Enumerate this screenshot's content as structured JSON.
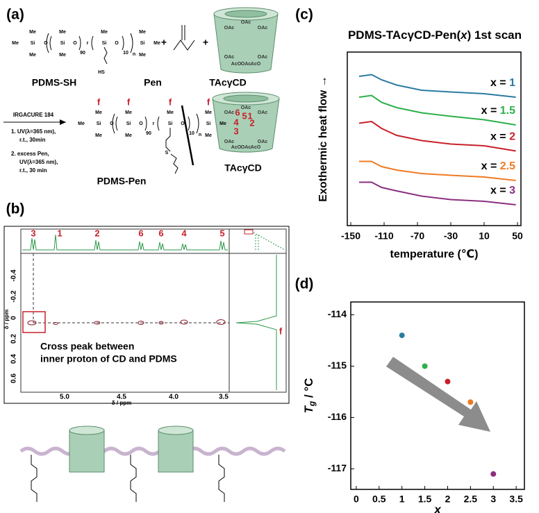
{
  "panel_a": {
    "label": "(a)",
    "me": "Me",
    "si": "Si",
    "o": "O",
    "r": "r",
    "n90": "90",
    "n10": "10",
    "n": "n",
    "hs": "HS",
    "s": "S",
    "plus": "+",
    "oac": "OAc",
    "aco": "AcO",
    "pdms_sh": "PDMS-SH",
    "pen": "Pen",
    "tacgcd": "TAcγCD",
    "reagent": "IRGACURE 184",
    "step1": [
      "1. UV(λ=365 nm),",
      "r.t., 30min"
    ],
    "step2": [
      "2. excess Pen,",
      "UV(λ=365 nm),",
      "r.t., 30 min"
    ],
    "pdms_pen": "PDMS-Pen",
    "f": "f",
    "cd_numbers": [
      "6",
      "5",
      "4",
      "3",
      "2",
      "1"
    ]
  },
  "panel_b": {
    "label": "(b)",
    "peak_labels": [
      "3",
      "1",
      "2",
      "6",
      "6",
      "4",
      "5"
    ],
    "f": "f",
    "yticks": [
      "-0.4",
      "-0.2",
      "0",
      "0.2",
      "0.4",
      "0.6"
    ],
    "xticks": [
      "5.0",
      "4.5",
      "4.0",
      "3.5"
    ],
    "axis_label": "δ / ppm",
    "annotation": [
      "Cross peak between",
      "inner proton of CD and PDMS"
    ]
  },
  "panel_c_label": "(c)",
  "panel_d_label": "(d)",
  "chart_data": [
    {
      "type": "line",
      "title": [
        "PDMS-TAcγCD-Pen(",
        "x",
        ") 1st scan"
      ],
      "x_label": "temperature (℃)",
      "y_label": "Exothermic heat flow →",
      "series_label_prefix": "x = ",
      "x": [
        -140,
        -125,
        -113,
        -95,
        -65,
        -30,
        10,
        48
      ],
      "xlim": [
        -150,
        50
      ],
      "xticks": [
        -150,
        -110,
        -70,
        -30,
        10,
        50
      ],
      "ylim": [
        0,
        10
      ],
      "series": [
        {
          "name": "1",
          "color": "#2a7ba0",
          "values": [
            8.6,
            8.7,
            8.4,
            8.1,
            7.8,
            7.7,
            7.6,
            7.4
          ]
        },
        {
          "name": "1.5",
          "color": "#2bb04a",
          "values": [
            7.4,
            7.5,
            7.1,
            6.8,
            6.5,
            6.3,
            6.1,
            5.8
          ]
        },
        {
          "name": "2",
          "color": "#c8202a",
          "values": [
            5.9,
            6.0,
            5.6,
            5.2,
            4.9,
            4.7,
            4.6,
            4.3
          ]
        },
        {
          "name": "2.5",
          "color": "#f07a22",
          "values": [
            3.7,
            3.7,
            3.4,
            3.2,
            3.0,
            2.9,
            2.8,
            2.6
          ]
        },
        {
          "name": "3",
          "color": "#8b2f7f",
          "values": [
            2.5,
            2.5,
            2.2,
            2.0,
            1.7,
            1.5,
            1.4,
            1.2
          ]
        }
      ]
    },
    {
      "type": "scatter",
      "x_label": "x",
      "y_label": [
        "T",
        "g",
        " / °C"
      ],
      "x": [
        1,
        1.5,
        2,
        2.5,
        3
      ],
      "values": [
        -114.4,
        -115.0,
        -115.3,
        -115.7,
        -117.1
      ],
      "colors": [
        "#2a7ba0",
        "#2bb04a",
        "#c8202a",
        "#f07a22",
        "#8b2f7f"
      ],
      "xlim": [
        -0.12,
        3.68
      ],
      "xticks": [
        0,
        0.5,
        1,
        1.5,
        2,
        2.5,
        3,
        3.5
      ],
      "ylim": [
        -117.4,
        -113.75
      ],
      "yticks": [
        -117,
        -116,
        -115,
        -114
      ]
    }
  ]
}
